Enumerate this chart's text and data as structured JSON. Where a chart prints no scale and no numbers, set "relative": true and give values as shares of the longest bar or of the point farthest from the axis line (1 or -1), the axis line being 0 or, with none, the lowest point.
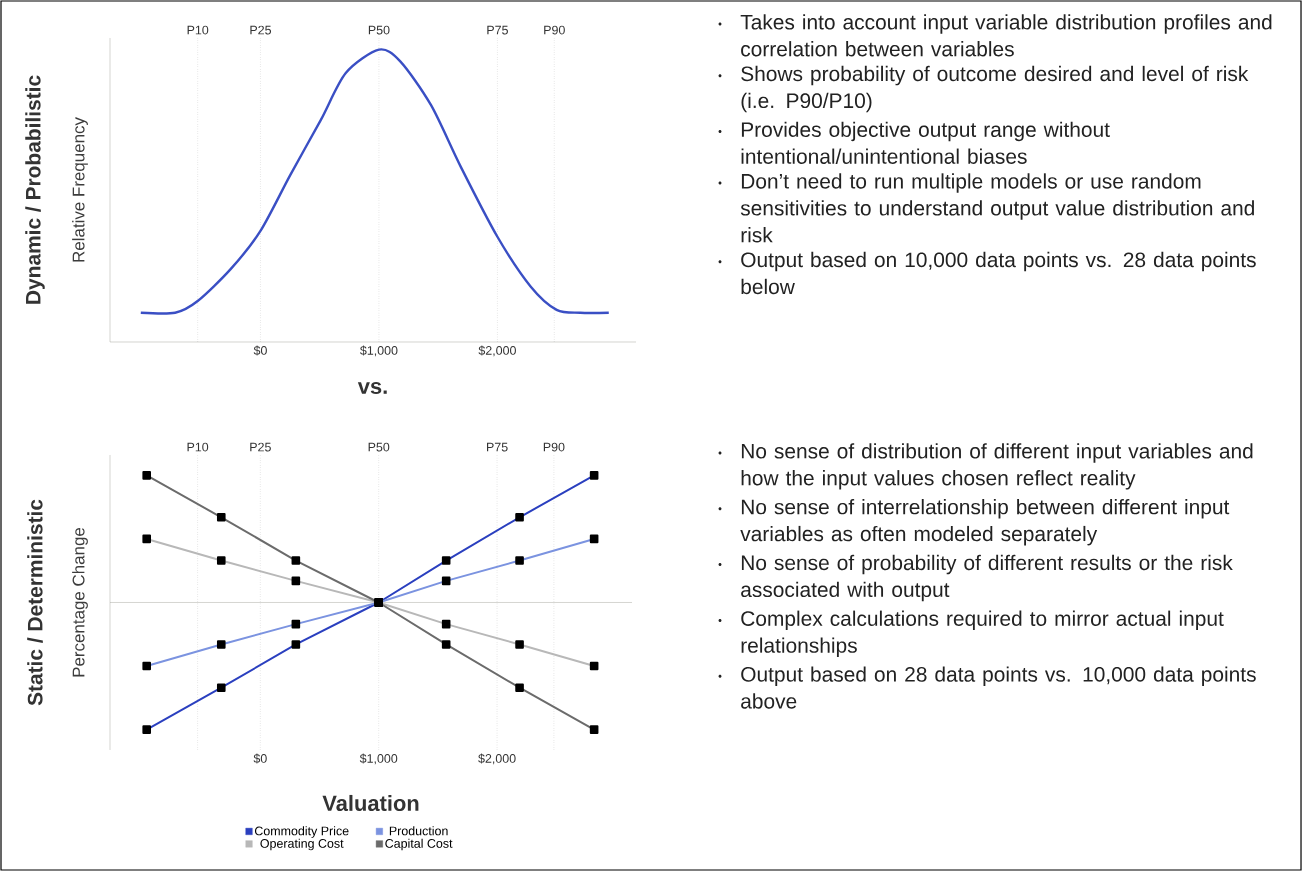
{
  "chart_data": [
    {
      "type": "line",
      "title": "Dynamic / Probabilistic",
      "ylabel": "Relative Frequency",
      "relative": true,
      "x": [
        -1010,
        -720,
        -530,
        -250,
        0,
        250,
        510,
        720,
        1000,
        1180,
        1440,
        1690,
        2000,
        2280,
        2500,
        2700,
        2940
      ],
      "xlim": [
        -1270,
        3170
      ],
      "xticks": [
        {
          "value": 0,
          "label": "$0"
        },
        {
          "value": 1000,
          "label": "$1,000"
        },
        {
          "value": 2000,
          "label": "$2,000"
        }
      ],
      "series": [
        {
          "color": "#3a4fc4",
          "values": [
            0.1,
            0.1,
            0.14,
            0.25,
            0.38,
            0.57,
            0.76,
            0.92,
            1,
            0.96,
            0.81,
            0.6,
            0.36,
            0.19,
            0.11,
            0.1,
            0.1
          ]
        }
      ],
      "ref_lines": [
        {
          "axis": "x",
          "value": -530,
          "label": "P10",
          "line_style": "dotted"
        },
        {
          "axis": "x",
          "value": 0,
          "label": "P25",
          "line_style": "dotted"
        },
        {
          "axis": "x",
          "value": 1000,
          "label": "P50",
          "line_style": "dotted"
        },
        {
          "axis": "x",
          "value": 2000,
          "label": "P75",
          "line_style": "dotted"
        },
        {
          "axis": "x",
          "value": 2480,
          "label": "P90",
          "line_style": "dotted"
        }
      ],
      "annotations": [
        "vs."
      ]
    },
    {
      "type": "other",
      "annotations": [
        "Takes into account input variable distribution profiles and correlation between variables",
        "Shows probability of outcome desired and level of risk (i.e. P90/P10)",
        "Provides objective output range without intentional/unintentional biases",
        "Don’t need to run multiple models or use random sensitivities to understand output value distribution and risk",
        "Output based on 10,000 data points vs. 28 data points below"
      ]
    },
    {
      "type": "line",
      "title": "Static / Deterministic",
      "ylabel": "Percentage Change",
      "xlabel": "Valuation",
      "relative": true,
      "x": [
        -960,
        -330,
        300,
        1000,
        1570,
        2190,
        2820
      ],
      "xlim": [
        -1270,
        3140
      ],
      "xticks": [
        {
          "value": 0,
          "label": "$0"
        },
        {
          "value": 1000,
          "label": "$1,000"
        },
        {
          "value": 2000,
          "label": "$2,000"
        }
      ],
      "marker": "square",
      "legend": "bottom",
      "series": [
        {
          "name": "Commodity Price",
          "color": "#2a3fbf",
          "values": [
            -1,
            -0.67,
            -0.33,
            0,
            0.33,
            0.67,
            1
          ]
        },
        {
          "name": "Production",
          "color": "#7b93e0",
          "values": [
            -0.5,
            -0.33,
            -0.17,
            0,
            0.17,
            0.33,
            0.5
          ]
        },
        {
          "name": "Operating Cost",
          "color": "#b8b8b8",
          "values": [
            0.5,
            0.33,
            0.17,
            0,
            -0.17,
            -0.33,
            -0.5
          ]
        },
        {
          "name": "Capital Cost",
          "color": "#6b6b6b",
          "values": [
            1,
            0.67,
            0.33,
            0,
            -0.33,
            -0.67,
            -1
          ]
        }
      ],
      "ref_lines": [
        {
          "axis": "x",
          "value": -530,
          "label": "P10",
          "line_style": "dotted"
        },
        {
          "axis": "x",
          "value": 0,
          "label": "P25",
          "line_style": "dotted"
        },
        {
          "axis": "x",
          "value": 1000,
          "label": "P50",
          "line_style": "dotted"
        },
        {
          "axis": "x",
          "value": 2000,
          "label": "P75",
          "line_style": "dotted"
        },
        {
          "axis": "x",
          "value": 2480,
          "label": "P90",
          "line_style": "dotted"
        }
      ]
    },
    {
      "type": "other",
      "annotations": [
        "No sense of distribution of different input variables and how the input values chosen reflect reality",
        "No sense of interrelationship between different input variables as often modeled separately",
        "No sense of probability of different results or the risk associated with output",
        "Complex calculations required to mirror actual input relationships",
        "Output based on 28 data points vs. 10,000 data points above"
      ]
    }
  ]
}
